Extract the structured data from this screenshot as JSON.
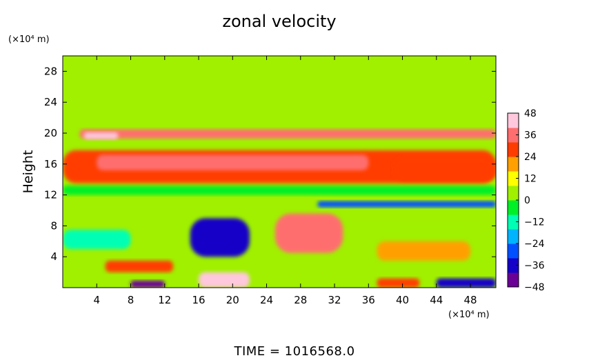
{
  "chart_data": {
    "type": "heatmap",
    "title": "zonal velocity",
    "ylabel": "Height",
    "xunit": "(×10⁴ m)",
    "yunit": "(×10⁴ m)",
    "footer": "TIME =  1016568.0",
    "xlim": [
      0,
      51
    ],
    "ylim": [
      0,
      30
    ],
    "x_ticks": [
      4,
      8,
      12,
      16,
      20,
      24,
      28,
      32,
      36,
      40,
      44,
      48
    ],
    "y_ticks": [
      4,
      8,
      12,
      16,
      20,
      24,
      28
    ],
    "colorbar": {
      "range": [
        -48,
        48
      ],
      "ticks": [
        48,
        36,
        24,
        12,
        0,
        -12,
        -24,
        -36,
        -48
      ],
      "colors": [
        "#6a0096",
        "#1400c8",
        "#0050ff",
        "#00b4ff",
        "#00ffb4",
        "#00f028",
        "#a0f000",
        "#ffff00",
        "#ffa000",
        "#ff3c00",
        "#ff6e6e",
        "#ffc8dc"
      ]
    },
    "background_value": 4,
    "layers": [
      {
        "z": 20,
        "x": [
          2,
          51
        ],
        "y": [
          19.3,
          20.5
        ],
        "v": 36
      },
      {
        "z": 46,
        "x": [
          2.5,
          6.5
        ],
        "y": [
          19.2,
          20.1
        ],
        "v": 46
      },
      {
        "z": 10,
        "x": [
          0,
          51
        ],
        "y": [
          13.5,
          17.8
        ],
        "v": 24
      },
      {
        "z": 14,
        "x": [
          4,
          36
        ],
        "y": [
          15.2,
          17.2
        ],
        "v": 32
      },
      {
        "z": 15,
        "x": [
          39,
          51
        ],
        "y": [
          13.8,
          16.8
        ],
        "v": 30
      },
      {
        "z": 9,
        "x": [
          0,
          51
        ],
        "y": [
          12,
          13.2
        ],
        "v": -8
      },
      {
        "z": 12,
        "x": [
          30,
          51
        ],
        "y": [
          10.4,
          11.2
        ],
        "v": -30
      },
      {
        "z": 30,
        "x": [
          15,
          22
        ],
        "y": [
          4,
          9
        ],
        "v": -40
      },
      {
        "z": 31,
        "x": [
          25,
          33
        ],
        "y": [
          4.5,
          9.6
        ],
        "v": 38
      },
      {
        "z": 32,
        "x": [
          16,
          22
        ],
        "y": [
          0,
          2
        ],
        "v": 42
      },
      {
        "z": 33,
        "x": [
          8,
          12
        ],
        "y": [
          0,
          0.9
        ],
        "v": -44
      },
      {
        "z": 33,
        "x": [
          44,
          51
        ],
        "y": [
          0,
          1.2
        ],
        "v": -36
      },
      {
        "z": 29,
        "x": [
          37,
          42
        ],
        "y": [
          0,
          1.2
        ],
        "v": 30
      },
      {
        "z": 28,
        "x": [
          5,
          13
        ],
        "y": [
          2,
          3.5
        ],
        "v": 24
      },
      {
        "z": 27,
        "x": [
          37,
          48
        ],
        "y": [
          3.5,
          6
        ],
        "v": 18
      },
      {
        "z": 26,
        "x": [
          0,
          8
        ],
        "y": [
          5,
          7.5
        ],
        "v": -12
      }
    ]
  }
}
